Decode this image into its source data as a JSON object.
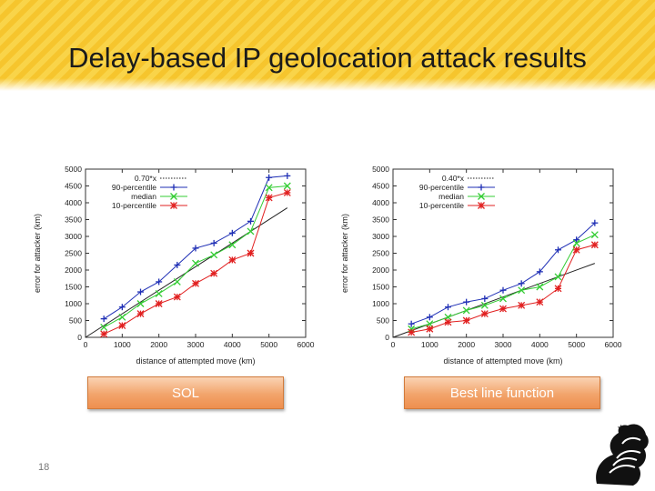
{
  "slide": {
    "title": "Delay-based IP geolocation attack results",
    "page_number": "18",
    "buttons": {
      "left": "SOL",
      "right": "Best line function"
    }
  },
  "colors": {
    "fit": "#222222",
    "p90": "#1f2fb5",
    "median": "#33cc33",
    "p10": "#e12020"
  },
  "chart_data": [
    {
      "type": "line",
      "xlabel": "distance of attempted move (km)",
      "ylabel": "error for attacker (km)",
      "xlim": [
        0,
        6000
      ],
      "ylim": [
        0,
        5000
      ],
      "xticks": [
        0,
        1000,
        2000,
        3000,
        4000,
        5000,
        6000
      ],
      "yticks": [
        0,
        500,
        1000,
        1500,
        2000,
        2500,
        3000,
        3500,
        4000,
        4500,
        5000
      ],
      "legend_position": "top-left",
      "x": [
        500,
        1000,
        1500,
        2000,
        2500,
        3000,
        3500,
        4000,
        4500,
        5000,
        5500
      ],
      "series": [
        {
          "name": "0.70*x",
          "style": "dotted-line",
          "color": "#222222",
          "fit_x": [
            0,
            5500
          ],
          "fit_y": [
            0,
            3850
          ]
        },
        {
          "name": "90-percentile",
          "marker": "+",
          "color": "#1f2fb5",
          "values": [
            550,
            900,
            1350,
            1650,
            2150,
            2650,
            2800,
            3100,
            3450,
            4750,
            4800
          ]
        },
        {
          "name": "median",
          "marker": "x",
          "color": "#33cc33",
          "values": [
            300,
            600,
            1000,
            1300,
            1650,
            2200,
            2450,
            2750,
            3150,
            4450,
            4500
          ]
        },
        {
          "name": "10-percentile",
          "marker": "*",
          "color": "#e12020",
          "values": [
            100,
            350,
            700,
            1000,
            1200,
            1600,
            1900,
            2300,
            2500,
            4150,
            4300
          ]
        }
      ]
    },
    {
      "type": "line",
      "xlabel": "distance of attempted move (km)",
      "ylabel": "error for attacker (km)",
      "xlim": [
        0,
        6000
      ],
      "ylim": [
        0,
        5000
      ],
      "xticks": [
        0,
        1000,
        2000,
        3000,
        4000,
        5000,
        6000
      ],
      "yticks": [
        0,
        500,
        1000,
        1500,
        2000,
        2500,
        3000,
        3500,
        4000,
        4500,
        5000
      ],
      "legend_position": "top-left",
      "x": [
        500,
        1000,
        1500,
        2000,
        2500,
        3000,
        3500,
        4000,
        4500,
        5000,
        5500
      ],
      "series": [
        {
          "name": "0.40*x",
          "style": "dotted-line",
          "color": "#222222",
          "fit_x": [
            0,
            5500
          ],
          "fit_y": [
            0,
            2200
          ]
        },
        {
          "name": "90-percentile",
          "marker": "+",
          "color": "#1f2fb5",
          "values": [
            400,
            600,
            900,
            1050,
            1150,
            1400,
            1600,
            1950,
            2600,
            2900,
            3400
          ]
        },
        {
          "name": "median",
          "marker": "x",
          "color": "#33cc33",
          "values": [
            250,
            400,
            600,
            800,
            950,
            1150,
            1400,
            1500,
            1800,
            2800,
            3050
          ]
        },
        {
          "name": "10-percentile",
          "marker": "*",
          "color": "#e12020",
          "values": [
            150,
            250,
            450,
            500,
            700,
            850,
            950,
            1050,
            1450,
            2600,
            2750
          ]
        }
      ]
    }
  ]
}
